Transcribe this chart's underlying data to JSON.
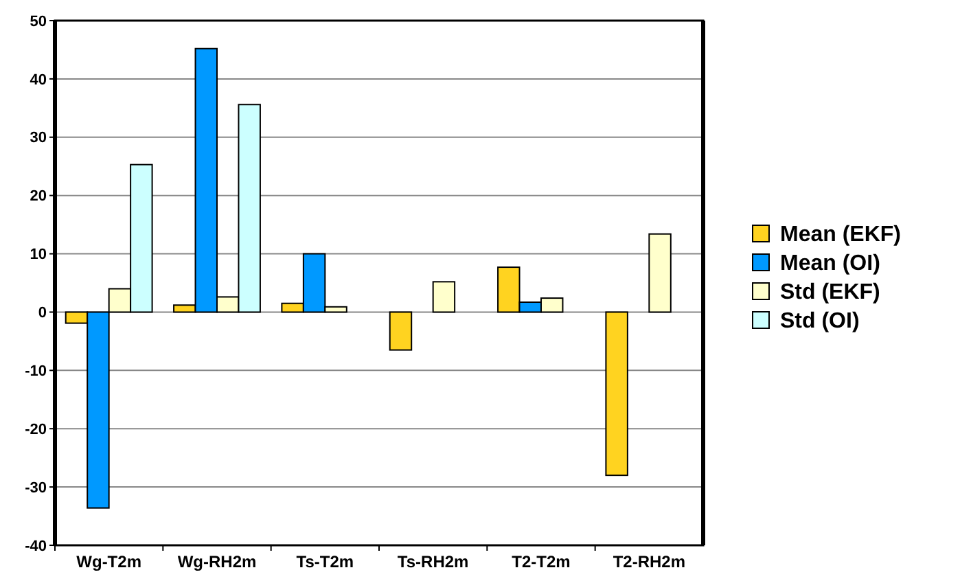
{
  "chart_data": {
    "type": "bar",
    "categories": [
      "Wg-T2m",
      "Wg-RH2m",
      "Ts-T2m",
      "Ts-RH2m",
      "T2-T2m",
      "T2-RH2m"
    ],
    "series": [
      {
        "name": "Mean (EKF)",
        "color": "#ffd320",
        "values": [
          -1.9,
          1.2,
          1.5,
          -6.5,
          7.7,
          -28.0
        ]
      },
      {
        "name": "Mean (OI)",
        "color": "#0099ff",
        "values": [
          -33.6,
          45.2,
          10.0,
          null,
          1.7,
          null
        ]
      },
      {
        "name": "Std (EKF)",
        "color": "#ffffcc",
        "values": [
          4.0,
          2.6,
          0.9,
          5.2,
          2.4,
          13.4
        ]
      },
      {
        "name": "Std (OI)",
        "color": "#ccffff",
        "values": [
          25.3,
          35.6,
          null,
          null,
          null,
          null
        ]
      }
    ],
    "ylim": [
      -40,
      50
    ],
    "yticks": [
      -40,
      -30,
      -20,
      -10,
      0,
      10,
      20,
      30,
      40,
      50
    ],
    "grid": "y",
    "legend": "right"
  }
}
